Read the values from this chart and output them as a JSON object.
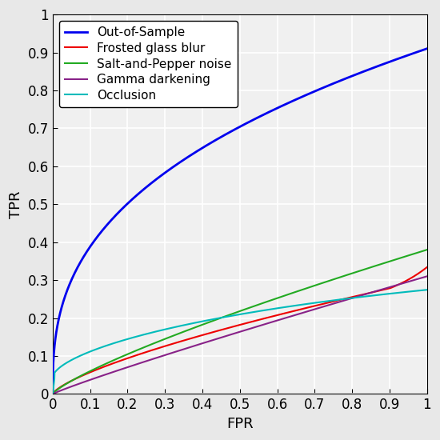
{
  "title": "",
  "xlabel": "FPR",
  "ylabel": "TPR",
  "xlim": [
    0,
    1
  ],
  "ylim": [
    0,
    1
  ],
  "xticks": [
    0,
    0.1,
    0.2,
    0.3,
    0.4,
    0.5,
    0.6,
    0.7,
    0.8,
    0.9,
    1
  ],
  "yticks": [
    0,
    0.1,
    0.2,
    0.3,
    0.4,
    0.5,
    0.6,
    0.7,
    0.8,
    0.9,
    1
  ],
  "legend_labels": [
    "Out-of-Sample",
    "Frosted glass blur",
    "Salt-and-Pepper noise",
    "Gamma darkening",
    "Occlusion"
  ],
  "line_colors": [
    "#0000EE",
    "#EE0000",
    "#22AA22",
    "#882288",
    "#00BBBB"
  ],
  "line_widths": [
    2.0,
    1.5,
    1.5,
    1.5,
    1.5
  ],
  "plot_bg_color": "#FFFFFF",
  "fig_bg_color": "#E8E8E8",
  "grid_color": "#FFFFFF",
  "grid_linewidth": 1.0,
  "font_size": 13,
  "legend_fontsize": 11,
  "tick_fontsize": 12
}
